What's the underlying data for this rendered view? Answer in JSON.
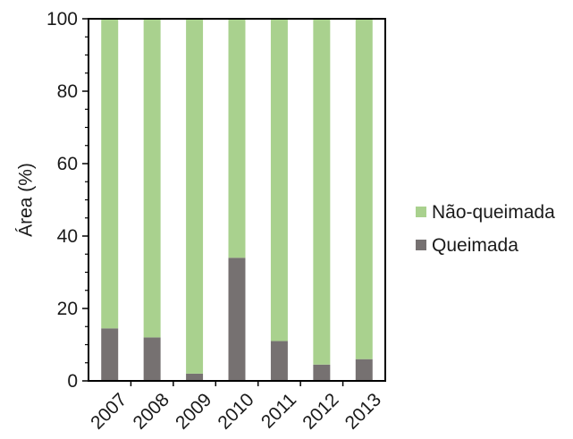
{
  "chart_data": {
    "type": "bar",
    "stacked": true,
    "categories": [
      "2007",
      "2008",
      "2009",
      "2010",
      "2011",
      "2012",
      "2013"
    ],
    "series": [
      {
        "name": "Queimada",
        "color": "#767171",
        "values": [
          14.5,
          12,
          2,
          34,
          11,
          4.5,
          6
        ]
      },
      {
        "name": "Não-queimada",
        "color": "#a9d18e",
        "values": [
          85.5,
          88,
          98,
          66,
          89,
          95.5,
          94
        ]
      }
    ],
    "ylabel": "Área (%)",
    "xlabel": "",
    "ylim": [
      0,
      100
    ],
    "yticks": [
      "0",
      "20",
      "40",
      "60",
      "80",
      "100"
    ],
    "grid": false,
    "legend_position": "right",
    "legend_order": [
      "Não-queimada",
      "Queimada"
    ]
  }
}
